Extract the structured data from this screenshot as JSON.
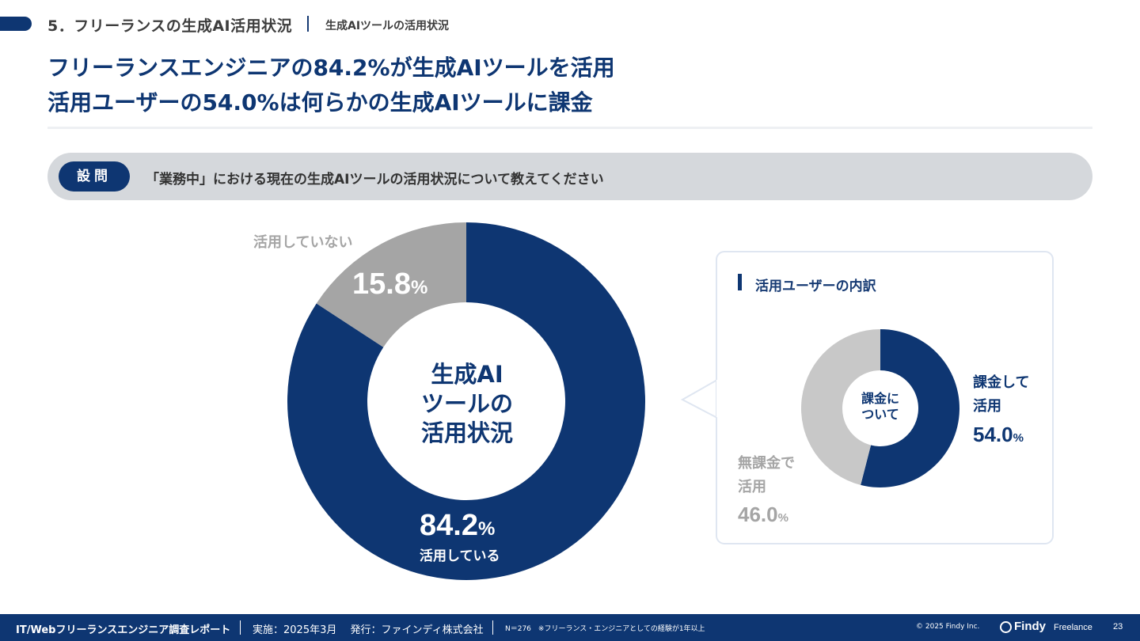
{
  "section": {
    "title": "5．フリーランスの生成AI活用状況",
    "subtitle": "生成AIツールの活用状況"
  },
  "headline": {
    "line1": "フリーランスエンジニアの84.2%が生成AIツールを活用",
    "line2": "活用ユーザーの54.0%は何らかの生成AIツールに課金"
  },
  "question": {
    "badge": "設問",
    "text": "「業務中」における現在の生成AIツールの活用状況について教えてください"
  },
  "chart_data": [
    {
      "type": "pie",
      "title": "生成AIツールの活用状況",
      "center_label_lines": [
        "生成AI",
        "ツールの",
        "活用状況"
      ],
      "labels": [
        "活用している",
        "活用していない"
      ],
      "values": [
        84.2,
        15.8
      ],
      "unit": "%",
      "colors": [
        "#0e3672",
        "#a5a5a5"
      ]
    },
    {
      "type": "pie",
      "title": "活用ユーザーの内訳",
      "center_label_lines": [
        "課金に",
        "ついて"
      ],
      "labels": [
        "課金して活用",
        "無課金で活用"
      ],
      "label_lines": [
        [
          "課金して",
          "活用"
        ],
        [
          "無課金で",
          "活用"
        ]
      ],
      "values": [
        54.0,
        46.0
      ],
      "unit": "%",
      "colors": [
        "#0e3672",
        "#c8c8c8"
      ]
    }
  ],
  "display": {
    "main_used_value": "84.2",
    "main_unused_value": "15.8",
    "sub_paid_value": "54.0",
    "sub_free_value": "46.0",
    "unit": "%"
  },
  "footer": {
    "report": "IT/Webフリーランスエンジニア調査レポート",
    "meta": "実施：2025年3月　 発行：ファインディ株式会社",
    "note": "N＝276　※フリーランス・エンジニアとしての経験が1年以上",
    "copyright": "© 2025 Findy Inc.",
    "logo": "Findy",
    "logo_sub": "Freelance",
    "page": "23"
  }
}
